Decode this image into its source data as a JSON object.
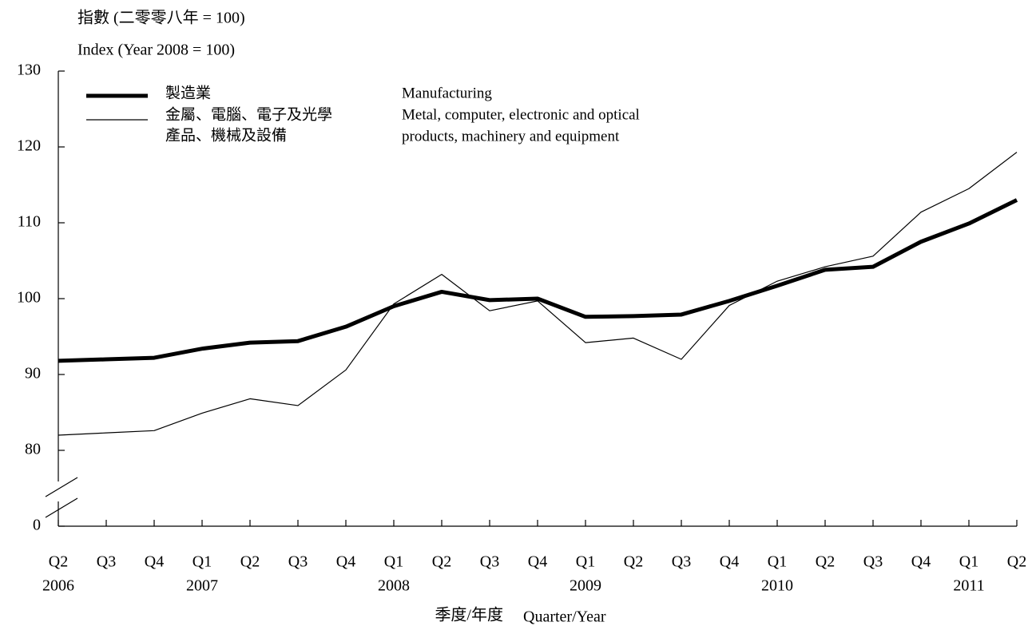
{
  "chart_data": {
    "type": "line",
    "y_title": [
      "指數 (二零零八年 = 100)",
      "Index (Year 2008 = 100)"
    ],
    "x_title": [
      "季度/年度",
      "Quarter/Year"
    ],
    "categories": [
      "Q2",
      "Q3",
      "Q4",
      "Q1",
      "Q2",
      "Q3",
      "Q4",
      "Q1",
      "Q2",
      "Q3",
      "Q4",
      "Q1",
      "Q2",
      "Q3",
      "Q4",
      "Q1",
      "Q2",
      "Q3",
      "Q4",
      "Q1",
      "Q2"
    ],
    "category_years": [
      "2006",
      null,
      null,
      "2007",
      null,
      null,
      null,
      "2008",
      null,
      null,
      null,
      "2009",
      null,
      null,
      null,
      "2010",
      null,
      null,
      null,
      "2011",
      null
    ],
    "series": [
      {
        "name": [
          "製造業"
        ],
        "name_en": [
          "Manufacturing"
        ],
        "color": "#000000",
        "width": 5,
        "values": [
          91.8,
          92.0,
          92.2,
          93.4,
          94.2,
          94.4,
          96.3,
          99.0,
          100.9,
          99.8,
          100.0,
          97.6,
          97.7,
          97.9,
          99.7,
          101.7,
          103.8,
          104.2,
          107.5,
          109.9,
          113.0
        ]
      },
      {
        "name": [
          "金屬、電腦、電子及光學",
          "產品、機械及設備"
        ],
        "name_en": [
          "Metal, computer, electronic and optical",
          "products, machinery and equipment"
        ],
        "color": "#000000",
        "width": 1.2,
        "values": [
          82.0,
          82.3,
          82.6,
          84.9,
          86.8,
          85.9,
          90.6,
          99.3,
          103.2,
          98.4,
          99.7,
          94.2,
          94.8,
          92.0,
          99.1,
          102.3,
          104.2,
          105.6,
          111.4,
          114.5,
          119.3
        ]
      }
    ],
    "ylim": [
      70,
      130
    ],
    "yticks": [
      0,
      80,
      90,
      100,
      110,
      120,
      130
    ],
    "y_break": true
  }
}
